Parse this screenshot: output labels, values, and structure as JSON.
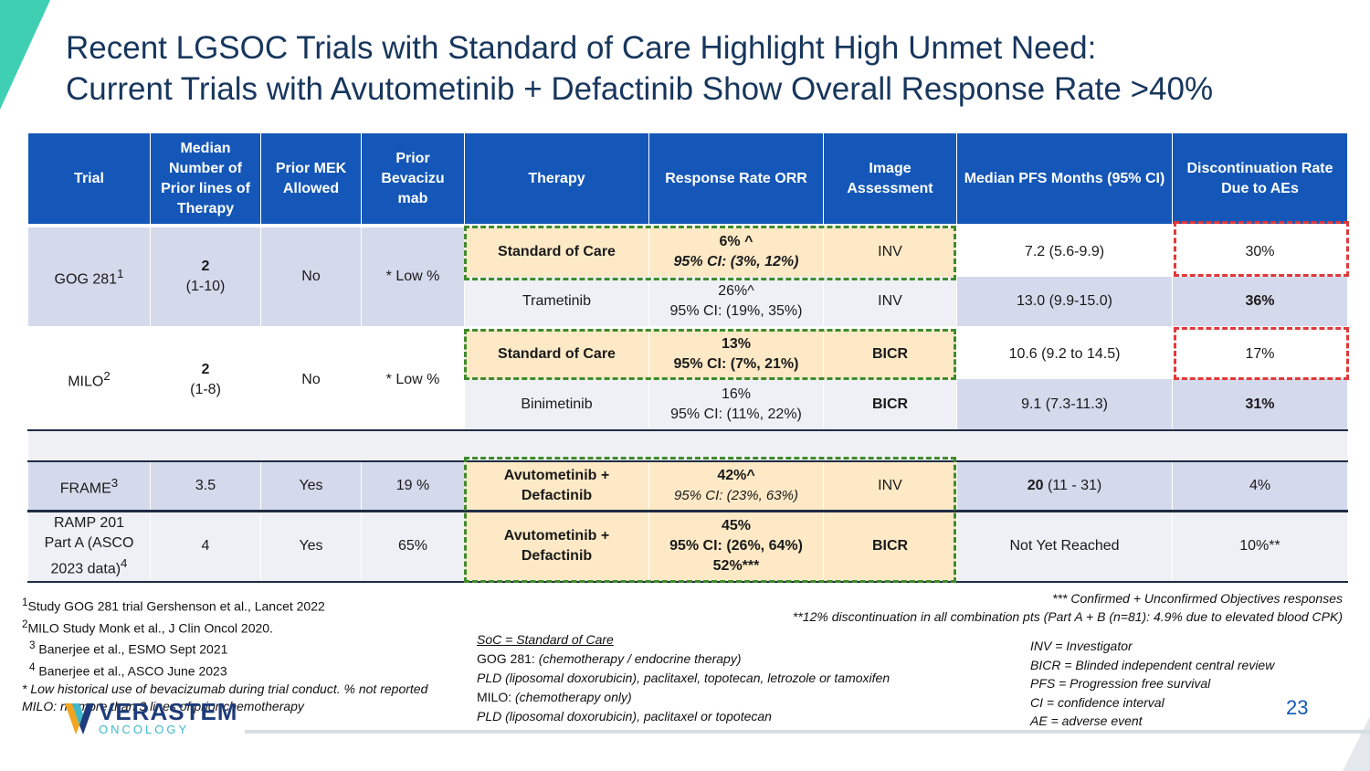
{
  "title": {
    "line1": "Recent LGSOC Trials with Standard of Care Highlight High Unmet Need:",
    "line2": "Current Trials with Avutometinib + Defactinib Show Overall Response Rate >40%"
  },
  "table": {
    "headers": {
      "trial": "Trial",
      "median_lines": "Median Number of Prior lines of Therapy",
      "prior_mek": "Prior MEK Allowed",
      "prior_bev": "Prior Bevacizu mab",
      "therapy": "Therapy",
      "orr": "Response Rate ORR",
      "image": "Image Assessment",
      "pfs": "Median PFS Months (95% CI)",
      "disc": "Discontinuation Rate Due to AEs"
    },
    "gog": {
      "trial": "GOG 281",
      "trial_sup": "1",
      "lines": "2",
      "lines_range": "(1-10)",
      "mek": "No",
      "bev": "* Low %",
      "soc": {
        "therapy": "Standard of Care",
        "orr1": "6% ^",
        "orr2": "95% CI: (3%, 12%)",
        "image": "INV",
        "pfs": "7.2 (5.6-9.9)",
        "disc": "30%"
      },
      "arm": {
        "therapy": "Trametinib",
        "orr1": "26%^",
        "orr2": "95% CI: (19%, 35%)",
        "image": "INV",
        "pfs": "13.0 (9.9-15.0)",
        "disc": "36%"
      }
    },
    "milo": {
      "trial": "MILO",
      "trial_sup": "2",
      "lines": "2",
      "lines_range": "(1-8)",
      "mek": "No",
      "bev": "* Low %",
      "soc": {
        "therapy": "Standard of Care",
        "orr1": "13%",
        "orr2": "95% CI: (7%, 21%)",
        "image": "BICR",
        "pfs": "10.6 (9.2 to 14.5)",
        "disc": "17%"
      },
      "arm": {
        "therapy": "Binimetinib",
        "orr1": "16%",
        "orr2": "95% CI: (11%, 22%)",
        "image": "BICR",
        "pfs": "9.1 (7.3-11.3)",
        "disc": "31%"
      }
    },
    "frame": {
      "trial": "FRAME",
      "trial_sup": "3",
      "lines": "3.5",
      "mek": "Yes",
      "bev": "19 %",
      "therapy1": "Avutometinib +",
      "therapy2": "Defactinib",
      "orr1": "42%^",
      "orr2": "95% CI: (23%, 63%)",
      "image": "INV",
      "pfs_bold": "20",
      "pfs_rest": " (11 - 31)",
      "disc": "4%"
    },
    "ramp": {
      "trial1": "RAMP 201",
      "trial2": "Part A",
      "trial3": " (ASCO",
      "trial4": "2023 data)",
      "trial_sup": "4",
      "lines": "4",
      "mek": "Yes",
      "bev": "65%",
      "therapy1": "Avutometinib +",
      "therapy2": "Defactinib",
      "orr1": "45%",
      "orr2": "95% CI: (26%, 64%)",
      "orr3": "52%***",
      "image": "BICR",
      "pfs": "Not Yet Reached",
      "disc": "10%**"
    }
  },
  "references": {
    "r1": "Study GOG 281 trial Gershenson et al., Lancet 2022",
    "r2": "MILO Study Monk et al., J Clin Oncol 2020.",
    "r3": " Banerjee et al., ESMO Sept 2021",
    "r4": " Banerjee et al., ASCO June 2023",
    "note1": "* Low historical use of bevacizumab during trial conduct. % not reported",
    "note2": "MILO: no more than 3 lines of prior chemotherapy"
  },
  "right_notes": {
    "n1": "*** Confirmed + Unconfirmed Objectives responses",
    "n2": "**12% discontinuation in all combination pts (Part A + B (n=81): 4.9% due to elevated blood CPK)"
  },
  "soc_notes": {
    "title": "SoC = Standard of Care",
    "gog_label": "GOG 281: ",
    "gog_desc": "(chemotherapy / endocrine therapy)",
    "gog_drugs": "PLD (liposomal doxorubicin), paclitaxel, topotecan, letrozole or tamoxifen",
    "milo_label": "MILO: ",
    "milo_desc": "(chemotherapy only)",
    "milo_drugs": "PLD (liposomal doxorubicin), paclitaxel or topotecan"
  },
  "abbreviations": [
    "INV = Investigator",
    "BICR = Blinded independent central review",
    "PFS =  Progression free survival",
    "CI = confidence interval",
    "AE = adverse event"
  ],
  "page_number": "23",
  "logo": {
    "name": "VERASTEM",
    "sub": "ONCOLOGY"
  },
  "colors": {
    "header": "#1457b8",
    "accent": "#3fd0b4",
    "soc_box": "#3f8b2c",
    "disc_box": "#e0393b"
  }
}
